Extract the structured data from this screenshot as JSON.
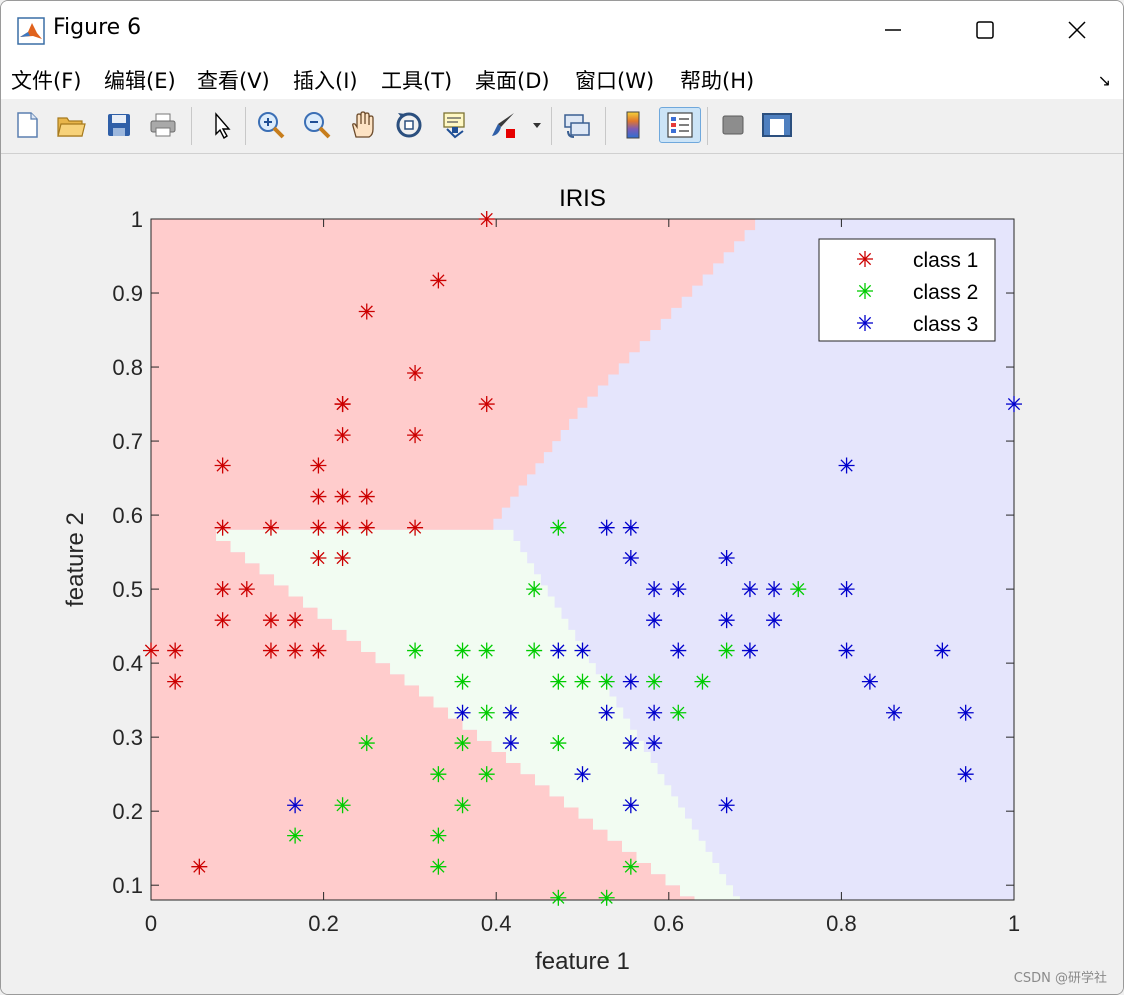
{
  "window": {
    "title": "Figure 6",
    "controls": [
      "minimize-icon",
      "maximize-icon",
      "close-icon"
    ]
  },
  "menu": {
    "items": [
      "文件(F)",
      "编辑(E)",
      "查看(V)",
      "插入(I)",
      "工具(T)",
      "桌面(D)",
      "窗口(W)",
      "帮助(H)"
    ],
    "dock_arrow": "↘"
  },
  "toolbar": {
    "icons": [
      "new-figure-icon",
      "open-file-icon",
      "save-icon",
      "print-icon",
      "edit-plot-arrow-icon",
      "zoom-in-icon",
      "zoom-out-icon",
      "pan-hand-icon",
      "rotate-3d-icon",
      "data-cursor-icon",
      "brush-icon",
      "brush-dropdown-icon",
      "link-plot-icon",
      "colorbar-icon",
      "legend-icon",
      "hide-plot-tools-icon",
      "show-plot-tools-icon"
    ]
  },
  "watermark": "CSDN @研学社",
  "chart_data": {
    "type": "scatter",
    "title": "IRIS",
    "xlabel": "feature 1",
    "ylabel": "feature 2",
    "xlim": [
      0,
      1
    ],
    "ylim": [
      0.08,
      1
    ],
    "xticks": [
      "0",
      "0.2",
      "0.4",
      "0.6",
      "0.8",
      "1"
    ],
    "yticks": [
      "0.1",
      "0.2",
      "0.3",
      "0.4",
      "0.5",
      "0.6",
      "0.7",
      "0.8",
      "0.9",
      "1"
    ],
    "marker": "*",
    "legend": {
      "location": "top-right",
      "entries": [
        "class 1",
        "class 2",
        "class 3"
      ]
    },
    "regions": [
      {
        "class": "class 1",
        "color": "#ffcccc"
      },
      {
        "class": "class 2",
        "color": "#f2fcf2"
      },
      {
        "class": "class 3",
        "color": "#e5e5fc"
      }
    ],
    "series": [
      {
        "name": "class 1",
        "color": "#cc0000",
        "x": [
          0.0,
          0.028,
          0.028,
          0.056,
          0.083,
          0.083,
          0.083,
          0.083,
          0.111,
          0.139,
          0.139,
          0.139,
          0.167,
          0.167,
          0.194,
          0.194,
          0.194,
          0.194,
          0.194,
          0.222,
          0.222,
          0.222,
          0.222,
          0.222,
          0.222,
          0.25,
          0.25,
          0.25,
          0.306,
          0.306,
          0.306,
          0.333,
          0.389,
          0.389
        ],
        "y": [
          0.417,
          0.417,
          0.375,
          0.125,
          0.458,
          0.5,
          0.583,
          0.667,
          0.5,
          0.417,
          0.458,
          0.583,
          0.417,
          0.458,
          0.417,
          0.542,
          0.583,
          0.625,
          0.667,
          0.542,
          0.583,
          0.625,
          0.708,
          0.75,
          0.75,
          0.583,
          0.625,
          0.875,
          0.583,
          0.708,
          0.792,
          0.917,
          0.75,
          1.0
        ]
      },
      {
        "name": "class 2",
        "color": "#00cc00",
        "x": [
          0.167,
          0.222,
          0.25,
          0.306,
          0.333,
          0.333,
          0.333,
          0.361,
          0.361,
          0.361,
          0.361,
          0.389,
          0.389,
          0.389,
          0.444,
          0.444,
          0.472,
          0.472,
          0.472,
          0.472,
          0.5,
          0.528,
          0.528,
          0.556,
          0.583,
          0.611,
          0.639,
          0.667,
          0.75
        ],
        "y": [
          0.167,
          0.208,
          0.292,
          0.417,
          0.125,
          0.167,
          0.25,
          0.208,
          0.292,
          0.375,
          0.417,
          0.25,
          0.333,
          0.417,
          0.417,
          0.5,
          0.083,
          0.292,
          0.375,
          0.583,
          0.375,
          0.083,
          0.375,
          0.125,
          0.375,
          0.333,
          0.375,
          0.417,
          0.5
        ]
      },
      {
        "name": "class 3",
        "color": "#0000cc",
        "x": [
          0.167,
          0.361,
          0.417,
          0.417,
          0.472,
          0.5,
          0.5,
          0.528,
          0.528,
          0.556,
          0.556,
          0.556,
          0.556,
          0.556,
          0.583,
          0.583,
          0.583,
          0.583,
          0.611,
          0.611,
          0.667,
          0.667,
          0.667,
          0.694,
          0.694,
          0.722,
          0.722,
          0.806,
          0.806,
          0.806,
          0.833,
          0.861,
          0.917,
          0.944,
          0.944,
          1.0
        ],
        "y": [
          0.208,
          0.333,
          0.292,
          0.333,
          0.417,
          0.25,
          0.417,
          0.333,
          0.583,
          0.208,
          0.292,
          0.375,
          0.542,
          0.583,
          0.292,
          0.333,
          0.458,
          0.5,
          0.417,
          0.5,
          0.208,
          0.458,
          0.542,
          0.417,
          0.5,
          0.458,
          0.5,
          0.417,
          0.5,
          0.667,
          0.375,
          0.333,
          0.417,
          0.25,
          0.333,
          0.75
        ]
      }
    ]
  }
}
